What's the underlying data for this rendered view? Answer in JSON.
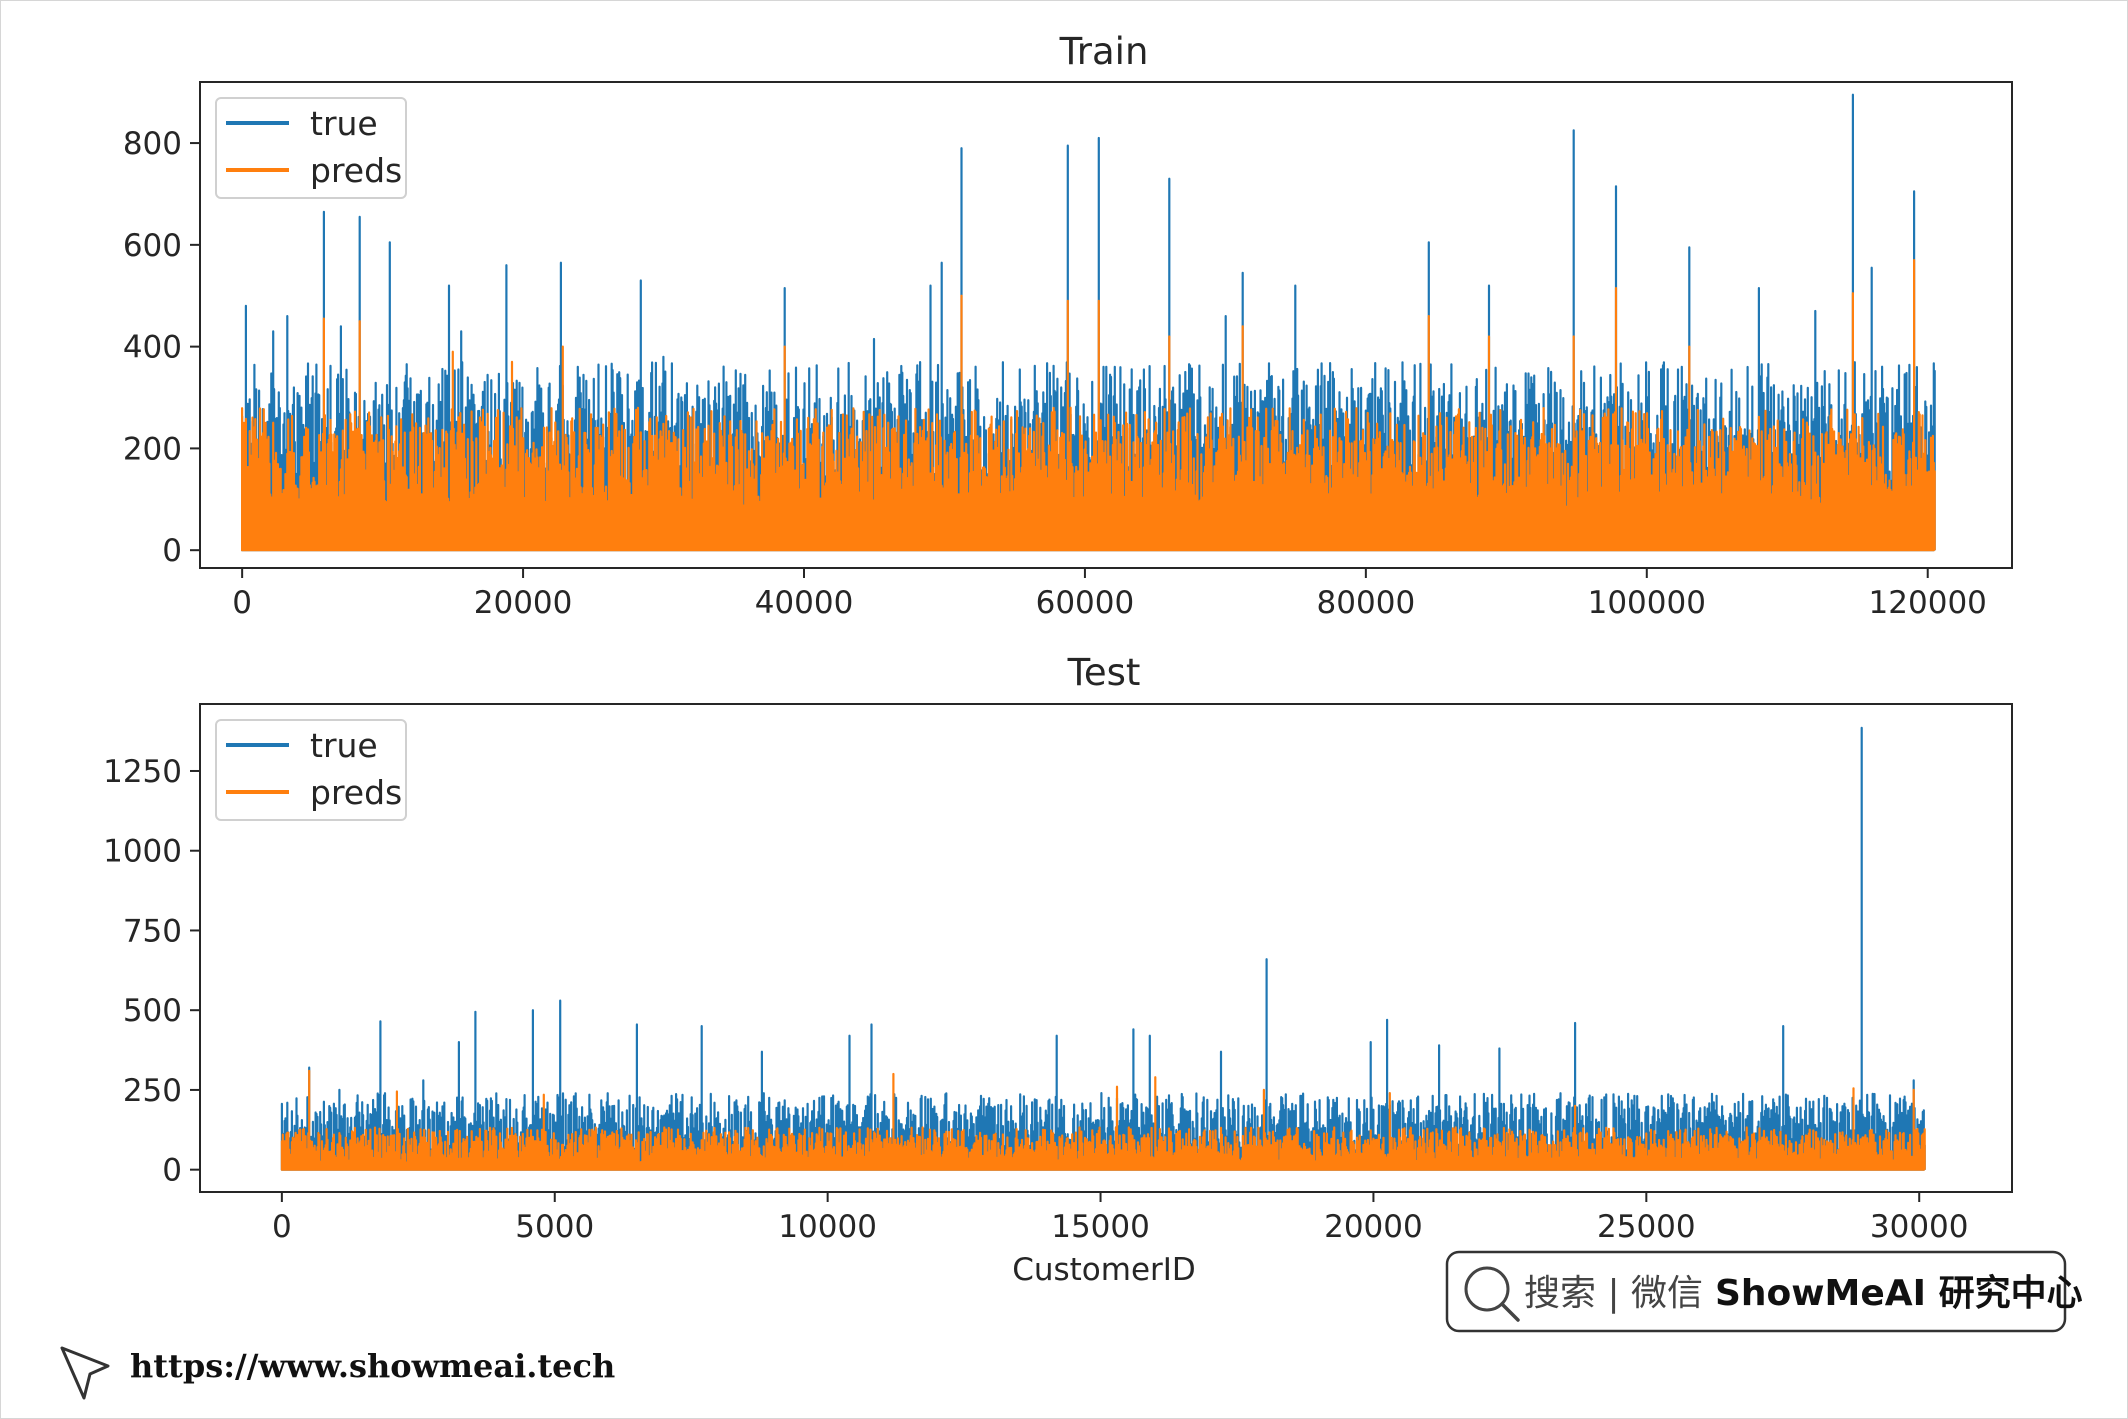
{
  "colors": {
    "true": "#1f77b4",
    "preds": "#ff7f0e"
  },
  "chart_data": [
    {
      "type": "line",
      "title": "Train",
      "xlabel": "",
      "ylabel": "",
      "xlim": [
        -3000,
        126000
      ],
      "ylim": [
        -35,
        920
      ],
      "x_ticks": [
        0,
        20000,
        40000,
        60000,
        80000,
        100000,
        120000
      ],
      "x_tick_labels": [
        "0",
        "20000",
        "40000",
        "60000",
        "80000",
        "100000",
        "120000"
      ],
      "y_ticks": [
        0,
        200,
        400,
        600,
        800
      ],
      "y_tick_labels": [
        "0",
        "200",
        "400",
        "600",
        "800"
      ],
      "legend": [
        "true",
        "preds"
      ],
      "legend_position": "top-left",
      "x_range": [
        0,
        120500
      ],
      "series": [
        {
          "name": "true",
          "baseline": [
            120,
            320
          ],
          "peaks": [
            {
              "x": 300,
              "y": 480
            },
            {
              "x": 2200,
              "y": 430
            },
            {
              "x": 3200,
              "y": 460
            },
            {
              "x": 5800,
              "y": 665
            },
            {
              "x": 7000,
              "y": 440
            },
            {
              "x": 8400,
              "y": 655
            },
            {
              "x": 10500,
              "y": 605
            },
            {
              "x": 14700,
              "y": 520
            },
            {
              "x": 15600,
              "y": 430
            },
            {
              "x": 18800,
              "y": 560
            },
            {
              "x": 22700,
              "y": 565
            },
            {
              "x": 28400,
              "y": 530
            },
            {
              "x": 30000,
              "y": 380
            },
            {
              "x": 38600,
              "y": 515
            },
            {
              "x": 45000,
              "y": 415
            },
            {
              "x": 49000,
              "y": 520
            },
            {
              "x": 49800,
              "y": 565
            },
            {
              "x": 51200,
              "y": 790
            },
            {
              "x": 58800,
              "y": 795
            },
            {
              "x": 61000,
              "y": 810
            },
            {
              "x": 66000,
              "y": 730
            },
            {
              "x": 70000,
              "y": 460
            },
            {
              "x": 71200,
              "y": 545
            },
            {
              "x": 75000,
              "y": 520
            },
            {
              "x": 84500,
              "y": 605
            },
            {
              "x": 88800,
              "y": 520
            },
            {
              "x": 94800,
              "y": 825
            },
            {
              "x": 97800,
              "y": 715
            },
            {
              "x": 103000,
              "y": 595
            },
            {
              "x": 108000,
              "y": 515
            },
            {
              "x": 112000,
              "y": 470
            },
            {
              "x": 114700,
              "y": 895
            },
            {
              "x": 116000,
              "y": 555
            },
            {
              "x": 119000,
              "y": 705
            }
          ]
        },
        {
          "name": "preds",
          "baseline": [
            80,
            240
          ],
          "peaks": [
            {
              "x": 5800,
              "y": 455
            },
            {
              "x": 8400,
              "y": 450
            },
            {
              "x": 15000,
              "y": 390
            },
            {
              "x": 19200,
              "y": 370
            },
            {
              "x": 22800,
              "y": 400
            },
            {
              "x": 38600,
              "y": 400
            },
            {
              "x": 51200,
              "y": 500
            },
            {
              "x": 58800,
              "y": 490
            },
            {
              "x": 61000,
              "y": 490
            },
            {
              "x": 66000,
              "y": 420
            },
            {
              "x": 71200,
              "y": 440
            },
            {
              "x": 84500,
              "y": 460
            },
            {
              "x": 88800,
              "y": 420
            },
            {
              "x": 94800,
              "y": 420
            },
            {
              "x": 97800,
              "y": 515
            },
            {
              "x": 103000,
              "y": 400
            },
            {
              "x": 114700,
              "y": 505
            },
            {
              "x": 119000,
              "y": 570
            }
          ]
        }
      ]
    },
    {
      "type": "line",
      "title": "Test",
      "xlabel": "CustomerID",
      "ylabel": "",
      "xlim": [
        -1500,
        31700
      ],
      "ylim": [
        -70,
        1460
      ],
      "x_ticks": [
        0,
        5000,
        10000,
        15000,
        20000,
        25000,
        30000
      ],
      "x_tick_labels": [
        "0",
        "5000",
        "10000",
        "15000",
        "20000",
        "25000",
        "30000"
      ],
      "y_ticks": [
        0,
        250,
        500,
        750,
        1000,
        1250
      ],
      "y_tick_labels": [
        "0",
        "250",
        "500",
        "750",
        "1000",
        "1250"
      ],
      "legend": [
        "true",
        "preds"
      ],
      "legend_position": "top-left",
      "x_range": [
        0,
        30100
      ],
      "series": [
        {
          "name": "true",
          "baseline": [
            40,
            200
          ],
          "peaks": [
            {
              "x": 100,
              "y": 210
            },
            {
              "x": 500,
              "y": 320
            },
            {
              "x": 1050,
              "y": 250
            },
            {
              "x": 1800,
              "y": 465
            },
            {
              "x": 2600,
              "y": 280
            },
            {
              "x": 3250,
              "y": 400
            },
            {
              "x": 3550,
              "y": 495
            },
            {
              "x": 4600,
              "y": 500
            },
            {
              "x": 5100,
              "y": 530
            },
            {
              "x": 6500,
              "y": 455
            },
            {
              "x": 7700,
              "y": 450
            },
            {
              "x": 8800,
              "y": 370
            },
            {
              "x": 10400,
              "y": 420
            },
            {
              "x": 10800,
              "y": 455
            },
            {
              "x": 14200,
              "y": 420
            },
            {
              "x": 15600,
              "y": 440
            },
            {
              "x": 15900,
              "y": 420
            },
            {
              "x": 17200,
              "y": 370
            },
            {
              "x": 18050,
              "y": 660
            },
            {
              "x": 19950,
              "y": 400
            },
            {
              "x": 20250,
              "y": 470
            },
            {
              "x": 21200,
              "y": 390
            },
            {
              "x": 22300,
              "y": 380
            },
            {
              "x": 23700,
              "y": 460
            },
            {
              "x": 27500,
              "y": 450
            },
            {
              "x": 28950,
              "y": 1385
            },
            {
              "x": 29900,
              "y": 280
            }
          ]
        },
        {
          "name": "preds",
          "baseline": [
            20,
            110
          ],
          "peaks": [
            {
              "x": 500,
              "y": 310
            },
            {
              "x": 2100,
              "y": 245
            },
            {
              "x": 4800,
              "y": 235
            },
            {
              "x": 11200,
              "y": 300
            },
            {
              "x": 15300,
              "y": 260
            },
            {
              "x": 16000,
              "y": 290
            },
            {
              "x": 18000,
              "y": 250
            },
            {
              "x": 20300,
              "y": 240
            },
            {
              "x": 23700,
              "y": 200
            },
            {
              "x": 28800,
              "y": 255
            },
            {
              "x": 29900,
              "y": 250
            }
          ]
        }
      ]
    }
  ],
  "watermark": {
    "search_label": "搜索 | 微信",
    "brand": "ShowMeAI 研究中心"
  },
  "footer": {
    "url": "https://www.showmeai.tech"
  }
}
